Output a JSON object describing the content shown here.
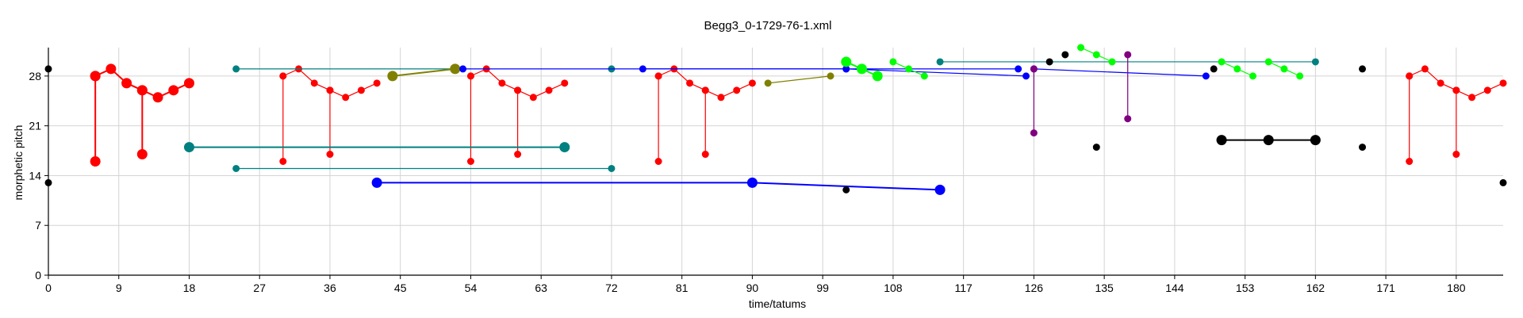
{
  "chart_data": {
    "type": "scatter",
    "title": "Begg3_0-1729-76-1.xml",
    "xlabel": "time/tatums",
    "ylabel": "morphetic pitch",
    "xlim": [
      0,
      186
    ],
    "ylim": [
      0,
      32
    ],
    "xticks": [
      0,
      9,
      18,
      27,
      36,
      45,
      54,
      63,
      72,
      81,
      90,
      99,
      108,
      117,
      126,
      135,
      144,
      153,
      162,
      171,
      180
    ],
    "yticks": [
      0,
      7,
      14,
      21,
      28
    ],
    "grid": true,
    "legend": "none",
    "series": [
      {
        "color": "#ff0000",
        "kind": "red",
        "connected": true,
        "segments": [
          {
            "points": [
              [
                6,
                28
              ],
              [
                6,
                16
              ]
            ],
            "size": "large"
          },
          {
            "points": [
              [
                6,
                28
              ],
              [
                8,
                29
              ],
              [
                10,
                27
              ],
              [
                12,
                26
              ],
              [
                12,
                17
              ]
            ],
            "size": "large"
          },
          {
            "points": [
              [
                12,
                26
              ],
              [
                14,
                25
              ],
              [
                16,
                26
              ],
              [
                18,
                27
              ]
            ],
            "size": "large"
          },
          {
            "points": [
              [
                30,
                28
              ],
              [
                30,
                16
              ]
            ],
            "size": "small"
          },
          {
            "points": [
              [
                30,
                28
              ],
              [
                32,
                29
              ],
              [
                34,
                27
              ],
              [
                36,
                26
              ],
              [
                36,
                17
              ]
            ],
            "size": "small"
          },
          {
            "points": [
              [
                36,
                26
              ],
              [
                38,
                25
              ],
              [
                40,
                26
              ],
              [
                42,
                27
              ]
            ],
            "size": "small"
          },
          {
            "points": [
              [
                54,
                28
              ],
              [
                54,
                16
              ]
            ],
            "size": "small"
          },
          {
            "points": [
              [
                54,
                28
              ],
              [
                56,
                29
              ],
              [
                58,
                27
              ],
              [
                60,
                26
              ],
              [
                60,
                17
              ]
            ],
            "size": "small"
          },
          {
            "points": [
              [
                60,
                26
              ],
              [
                62,
                25
              ],
              [
                64,
                26
              ],
              [
                66,
                27
              ]
            ],
            "size": "small"
          },
          {
            "points": [
              [
                78,
                28
              ],
              [
                78,
                16
              ]
            ],
            "size": "small"
          },
          {
            "points": [
              [
                78,
                28
              ],
              [
                80,
                29
              ],
              [
                82,
                27
              ],
              [
                84,
                26
              ],
              [
                84,
                17
              ]
            ],
            "size": "small"
          },
          {
            "points": [
              [
                84,
                26
              ],
              [
                86,
                25
              ],
              [
                88,
                26
              ],
              [
                90,
                27
              ]
            ],
            "size": "small"
          },
          {
            "points": [
              [
                174,
                28
              ],
              [
                174,
                16
              ]
            ],
            "size": "small"
          },
          {
            "points": [
              [
                174,
                28
              ],
              [
                176,
                29
              ],
              [
                178,
                27
              ],
              [
                180,
                26
              ],
              [
                180,
                17
              ]
            ],
            "size": "small"
          },
          {
            "points": [
              [
                180,
                26
              ],
              [
                182,
                25
              ],
              [
                184,
                26
              ],
              [
                186,
                27
              ]
            ],
            "size": "small"
          }
        ]
      },
      {
        "color": "#008080",
        "kind": "teal",
        "connected": true,
        "segments": [
          {
            "points": [
              [
                24,
                29
              ],
              [
                52,
                29
              ]
            ],
            "size": "small"
          },
          {
            "points": [
              [
                18,
                18
              ],
              [
                66,
                18
              ]
            ],
            "size": "large"
          },
          {
            "points": [
              [
                24,
                15
              ],
              [
                72,
                15
              ]
            ],
            "size": "small"
          },
          {
            "points": [
              [
                114,
                30
              ],
              [
                162,
                30
              ]
            ],
            "size": "small"
          },
          {
            "points": [
              [
                72,
                29
              ]
            ],
            "size": "small"
          }
        ]
      },
      {
        "color": "#808000",
        "kind": "olive",
        "connected": true,
        "segments": [
          {
            "points": [
              [
                44,
                28
              ],
              [
                52,
                29
              ]
            ],
            "size": "large"
          },
          {
            "points": [
              [
                92,
                27
              ],
              [
                100,
                28
              ]
            ],
            "size": "small"
          }
        ]
      },
      {
        "color": "#0000ff",
        "kind": "blue",
        "connected": true,
        "segments": [
          {
            "points": [
              [
                53,
                29
              ],
              [
                102,
                29
              ]
            ],
            "size": "small"
          },
          {
            "points": [
              [
                42,
                13
              ],
              [
                90,
                13
              ],
              [
                114,
                12
              ]
            ],
            "size": "large"
          },
          {
            "points": [
              [
                76,
                29
              ],
              [
                124,
                29
              ]
            ],
            "size": "small"
          },
          {
            "points": [
              [
                102,
                29
              ],
              [
                125,
                28
              ]
            ],
            "size": "small"
          },
          {
            "points": [
              [
                126,
                29
              ],
              [
                148,
                28
              ]
            ],
            "size": "small"
          }
        ]
      },
      {
        "color": "#00ff00",
        "kind": "green",
        "connected": true,
        "segments": [
          {
            "points": [
              [
                102,
                30
              ],
              [
                104,
                29
              ],
              [
                106,
                28
              ]
            ],
            "size": "large"
          },
          {
            "points": [
              [
                108,
                30
              ],
              [
                110,
                29
              ],
              [
                112,
                28
              ]
            ],
            "size": "small"
          },
          {
            "points": [
              [
                132,
                32
              ],
              [
                134,
                31
              ],
              [
                136,
                30
              ]
            ],
            "size": "small"
          },
          {
            "points": [
              [
                150,
                30
              ],
              [
                152,
                29
              ],
              [
                154,
                28
              ]
            ],
            "size": "small"
          },
          {
            "points": [
              [
                156,
                30
              ],
              [
                158,
                29
              ],
              [
                160,
                28
              ]
            ],
            "size": "small"
          }
        ]
      },
      {
        "color": "#800080",
        "kind": "purple",
        "connected": true,
        "segments": [
          {
            "points": [
              [
                126,
                29
              ],
              [
                126,
                20
              ]
            ],
            "size": "small"
          },
          {
            "points": [
              [
                138,
                31
              ],
              [
                138,
                22
              ]
            ],
            "size": "small"
          }
        ]
      },
      {
        "color": "#000000",
        "kind": "black",
        "connected": true,
        "segments": [
          {
            "points": [
              [
                150,
                19
              ],
              [
                156,
                19
              ],
              [
                162,
                19
              ]
            ],
            "size": "large"
          }
        ]
      },
      {
        "color": "#000000",
        "kind": "black",
        "connected": false,
        "segments": [
          {
            "points": [
              [
                0,
                29
              ],
              [
                0,
                13
              ],
              [
                102,
                12
              ],
              [
                128,
                30
              ],
              [
                130,
                31
              ],
              [
                134,
                18
              ],
              [
                149,
                29
              ],
              [
                168,
                29
              ],
              [
                168,
                18
              ],
              [
                186,
                13
              ]
            ],
            "size": "small"
          }
        ]
      }
    ]
  }
}
